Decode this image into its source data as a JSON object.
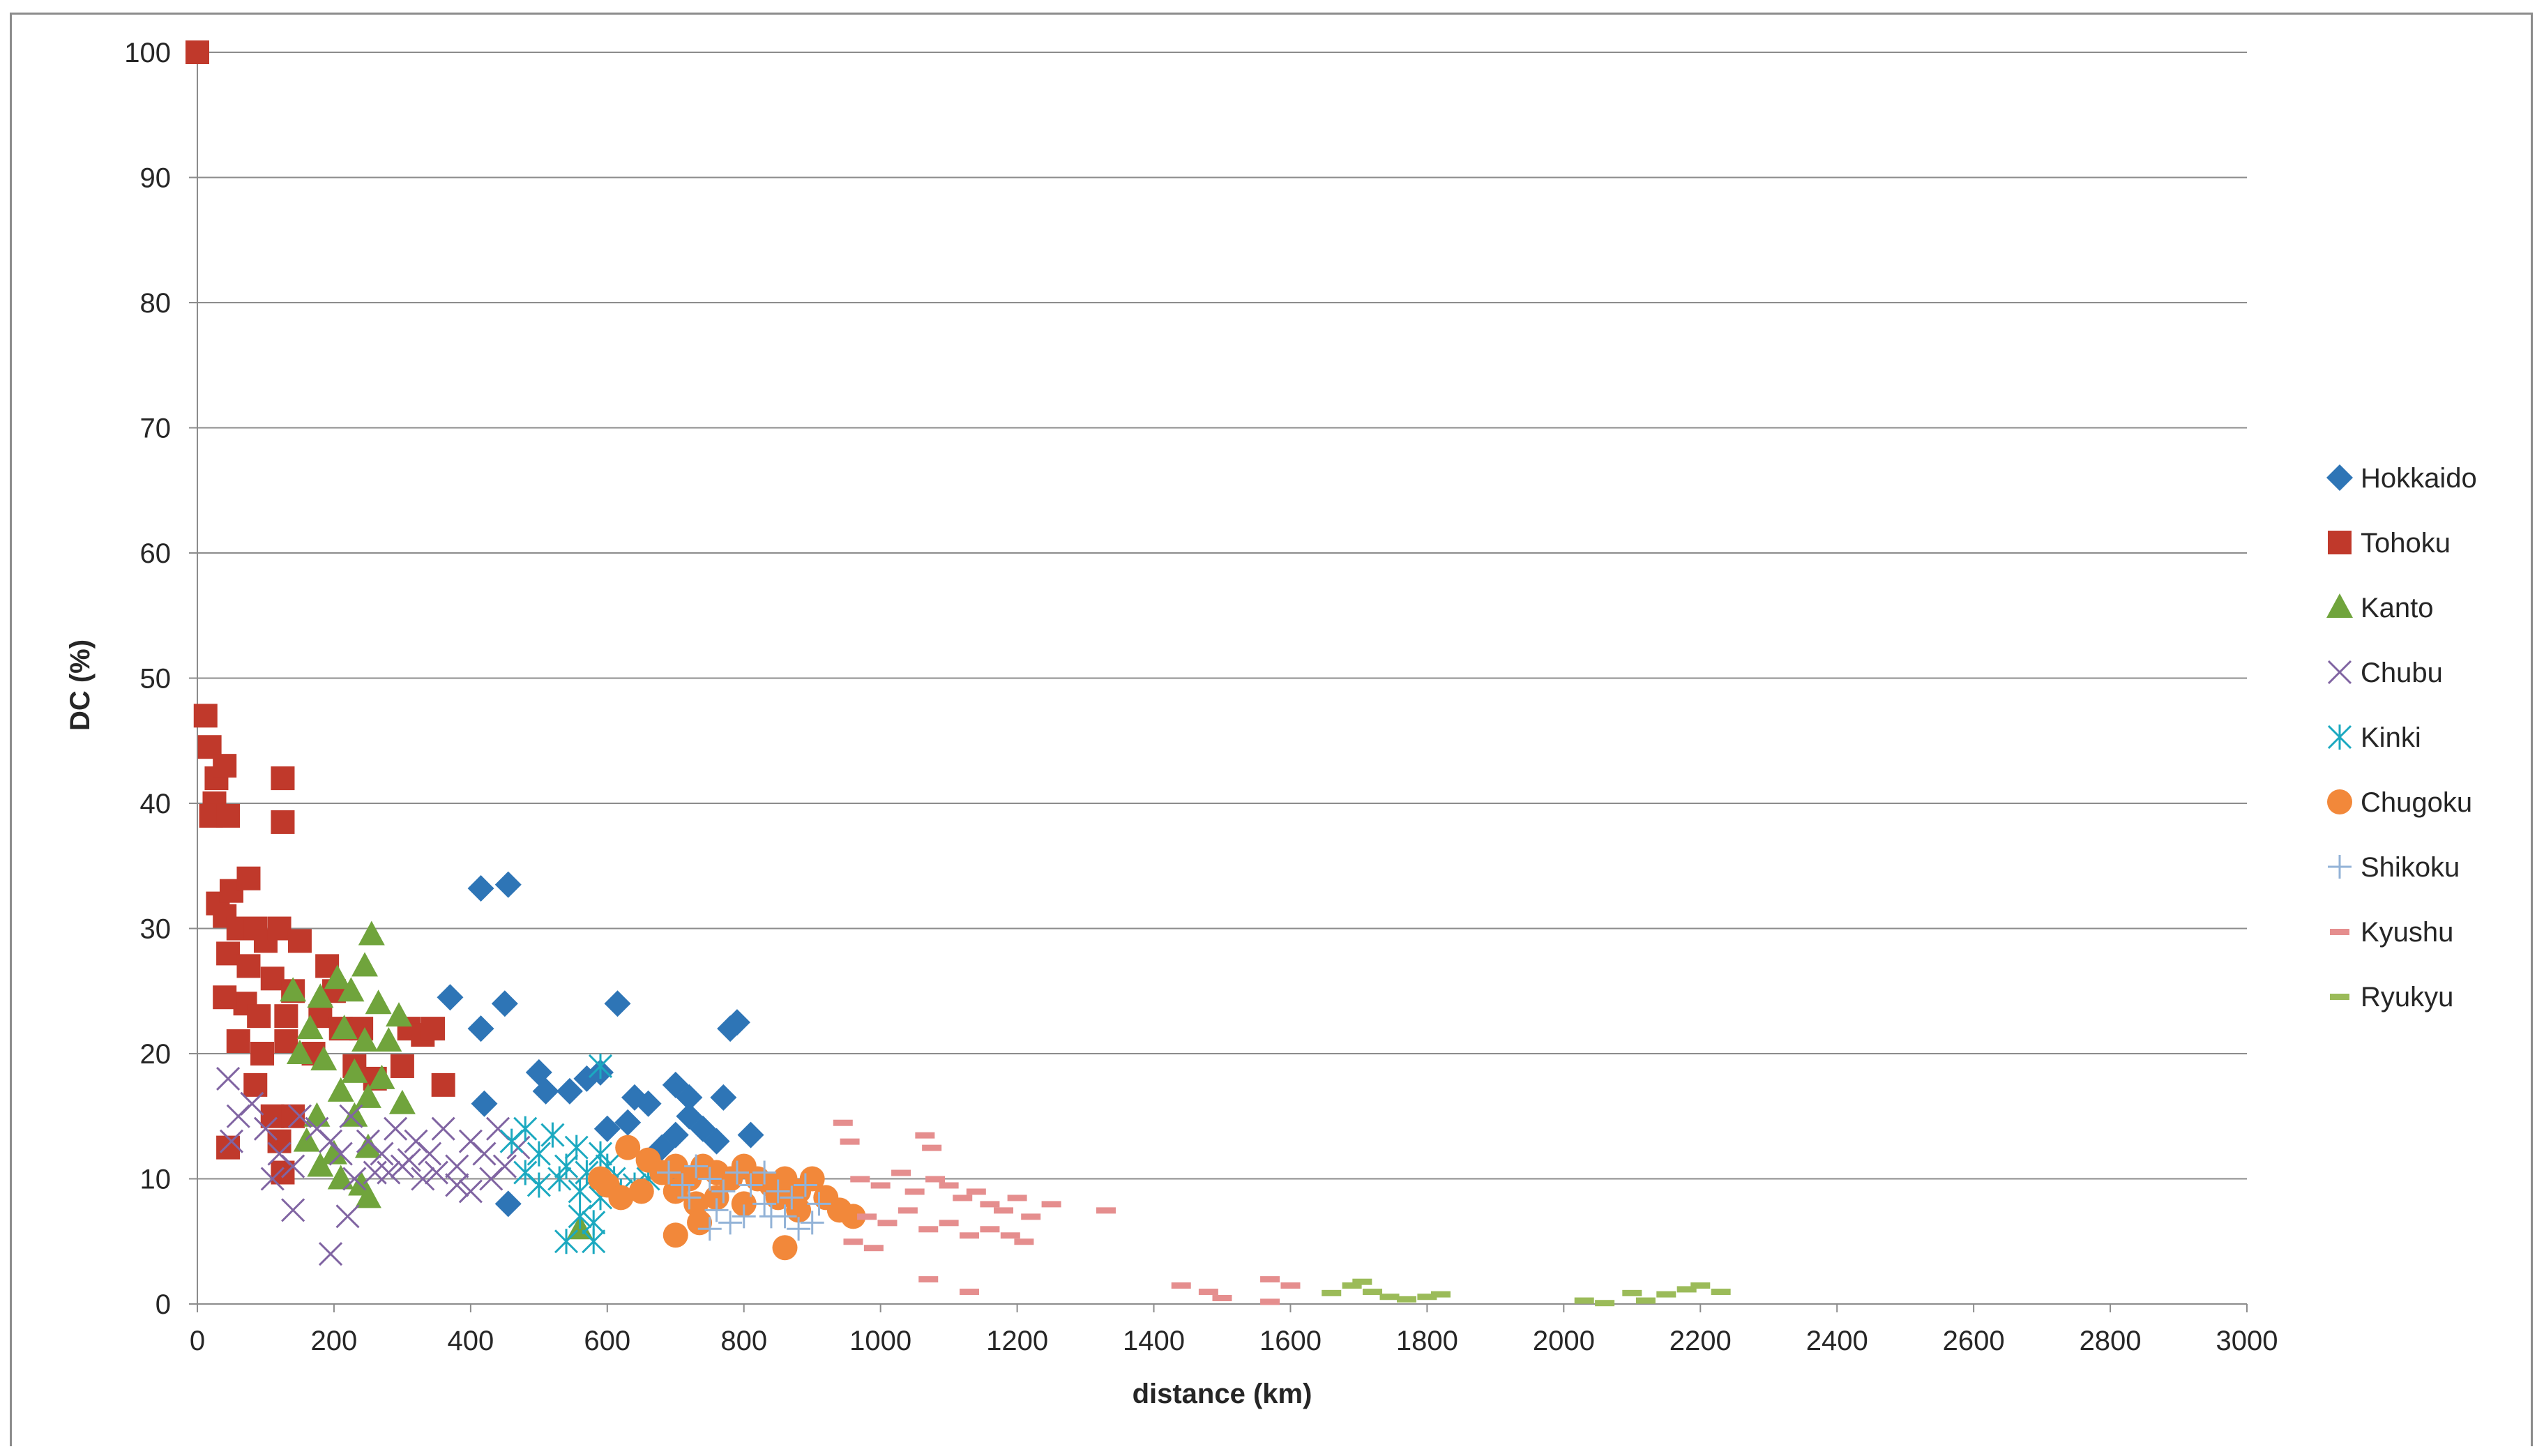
{
  "chart_data": {
    "type": "scatter",
    "title": "",
    "xlabel": "distance (km)",
    "ylabel": "DC (%)",
    "xlim": [
      0,
      3000
    ],
    "ylim": [
      0,
      100
    ],
    "x_ticks": [
      "0",
      "200",
      "400",
      "600",
      "800",
      "1000",
      "1200",
      "1400",
      "1600",
      "1800",
      "2000",
      "2200",
      "2400",
      "2600",
      "2800",
      "3000"
    ],
    "y_ticks": [
      "0",
      "10",
      "20",
      "30",
      "40",
      "50",
      "60",
      "70",
      "80",
      "90",
      "100"
    ],
    "grid": "horizontal",
    "legend_position": "right",
    "series": [
      {
        "name": "Hokkaido",
        "marker": "diamond",
        "color": "#2e75b6",
        "points": [
          [
            415,
            33.2
          ],
          [
            455,
            33.5
          ],
          [
            370,
            24.5
          ],
          [
            450,
            24
          ],
          [
            615,
            24
          ],
          [
            780,
            22
          ],
          [
            790,
            22.5
          ],
          [
            415,
            22
          ],
          [
            500,
            18.5
          ],
          [
            510,
            17
          ],
          [
            570,
            18
          ],
          [
            590,
            18.5
          ],
          [
            545,
            17
          ],
          [
            640,
            16.5
          ],
          [
            660,
            16
          ],
          [
            700,
            17.5
          ],
          [
            720,
            16.5
          ],
          [
            770,
            16.5
          ],
          [
            420,
            16
          ],
          [
            600,
            14
          ],
          [
            630,
            14.5
          ],
          [
            720,
            15
          ],
          [
            740,
            14
          ],
          [
            810,
            13.5
          ],
          [
            700,
            13.5
          ],
          [
            760,
            13
          ],
          [
            680,
            12.5
          ],
          [
            455,
            8
          ]
        ]
      },
      {
        "name": "Tohoku",
        "marker": "square",
        "color": "#c0392b",
        "points": [
          [
            0,
            100
          ],
          [
            12,
            47
          ],
          [
            18,
            44.5
          ],
          [
            28,
            42
          ],
          [
            40,
            43
          ],
          [
            25,
            40
          ],
          [
            20,
            39
          ],
          [
            45,
            39
          ],
          [
            125,
            42
          ],
          [
            125,
            38.5
          ],
          [
            30,
            32
          ],
          [
            50,
            33
          ],
          [
            75,
            34
          ],
          [
            40,
            31
          ],
          [
            60,
            30
          ],
          [
            85,
            30
          ],
          [
            100,
            29
          ],
          [
            120,
            30
          ],
          [
            150,
            29
          ],
          [
            190,
            27
          ],
          [
            45,
            28
          ],
          [
            75,
            27
          ],
          [
            110,
            26
          ],
          [
            140,
            25
          ],
          [
            200,
            25
          ],
          [
            70,
            24
          ],
          [
            40,
            24.5
          ],
          [
            90,
            23
          ],
          [
            130,
            23
          ],
          [
            180,
            23
          ],
          [
            210,
            22
          ],
          [
            240,
            22
          ],
          [
            310,
            22
          ],
          [
            330,
            21.5
          ],
          [
            345,
            22
          ],
          [
            60,
            21
          ],
          [
            95,
            20
          ],
          [
            130,
            21
          ],
          [
            170,
            20
          ],
          [
            230,
            19
          ],
          [
            260,
            18
          ],
          [
            300,
            19
          ],
          [
            360,
            17.5
          ],
          [
            85,
            17.5
          ],
          [
            110,
            15
          ],
          [
            140,
            15
          ],
          [
            120,
            13
          ],
          [
            45,
            12.5
          ],
          [
            125,
            10.5
          ]
        ]
      },
      {
        "name": "Kanto",
        "marker": "triangle",
        "color": "#70a43c",
        "points": [
          [
            255,
            29.5
          ],
          [
            245,
            27
          ],
          [
            140,
            25
          ],
          [
            180,
            24.5
          ],
          [
            205,
            26
          ],
          [
            225,
            25
          ],
          [
            265,
            24
          ],
          [
            295,
            23
          ],
          [
            165,
            22
          ],
          [
            215,
            22
          ],
          [
            245,
            21
          ],
          [
            280,
            21
          ],
          [
            150,
            20
          ],
          [
            185,
            19.5
          ],
          [
            230,
            18.5
          ],
          [
            270,
            18
          ],
          [
            210,
            17
          ],
          [
            250,
            16.5
          ],
          [
            300,
            16
          ],
          [
            175,
            15
          ],
          [
            230,
            15
          ],
          [
            160,
            13
          ],
          [
            200,
            12
          ],
          [
            250,
            12.5
          ],
          [
            180,
            11
          ],
          [
            210,
            10
          ],
          [
            240,
            9.5
          ],
          [
            250,
            8.5
          ],
          [
            560,
            6
          ]
        ]
      },
      {
        "name": "Chubu",
        "marker": "x",
        "color": "#8064a2",
        "points": [
          [
            45,
            18
          ],
          [
            60,
            15
          ],
          [
            80,
            16
          ],
          [
            100,
            14
          ],
          [
            120,
            12
          ],
          [
            50,
            13
          ],
          [
            140,
            11
          ],
          [
            150,
            15
          ],
          [
            175,
            14
          ],
          [
            195,
            13
          ],
          [
            210,
            12
          ],
          [
            225,
            15
          ],
          [
            250,
            13
          ],
          [
            270,
            12
          ],
          [
            290,
            14
          ],
          [
            300,
            11
          ],
          [
            320,
            13
          ],
          [
            340,
            12
          ],
          [
            360,
            14
          ],
          [
            380,
            11
          ],
          [
            400,
            13
          ],
          [
            420,
            12
          ],
          [
            440,
            14
          ],
          [
            450,
            11
          ],
          [
            470,
            12.5
          ],
          [
            230,
            10
          ],
          [
            280,
            10.5
          ],
          [
            330,
            10
          ],
          [
            380,
            9.5
          ],
          [
            430,
            10
          ],
          [
            110,
            10
          ],
          [
            140,
            7.5
          ],
          [
            195,
            4
          ],
          [
            260,
            10.5
          ],
          [
            310,
            11.5
          ],
          [
            350,
            10.5
          ],
          [
            400,
            9
          ],
          [
            220,
            7
          ]
        ]
      },
      {
        "name": "Kinki",
        "marker": "asterisk",
        "color": "#1ba9c0",
        "points": [
          [
            460,
            13
          ],
          [
            480,
            14
          ],
          [
            500,
            12
          ],
          [
            520,
            13.5
          ],
          [
            540,
            11
          ],
          [
            555,
            12.5
          ],
          [
            570,
            10.5
          ],
          [
            590,
            12
          ],
          [
            600,
            11
          ],
          [
            610,
            10
          ],
          [
            480,
            10.5
          ],
          [
            500,
            9.5
          ],
          [
            530,
            10
          ],
          [
            560,
            9
          ],
          [
            590,
            8.5
          ],
          [
            620,
            9
          ],
          [
            640,
            9.5
          ],
          [
            560,
            7
          ],
          [
            580,
            6.5
          ],
          [
            540,
            5
          ],
          [
            580,
            5
          ],
          [
            590,
            19
          ],
          [
            660,
            10
          ]
        ]
      },
      {
        "name": "Chugoku",
        "marker": "circle",
        "color": "#f2883a",
        "points": [
          [
            630,
            12.5
          ],
          [
            660,
            11.5
          ],
          [
            680,
            10.5
          ],
          [
            700,
            11
          ],
          [
            720,
            10
          ],
          [
            740,
            11
          ],
          [
            760,
            10.5
          ],
          [
            780,
            10
          ],
          [
            800,
            11
          ],
          [
            820,
            10
          ],
          [
            840,
            9.5
          ],
          [
            860,
            10
          ],
          [
            880,
            9
          ],
          [
            900,
            10
          ],
          [
            920,
            8.5
          ],
          [
            940,
            7.5
          ],
          [
            960,
            7
          ],
          [
            600,
            9.5
          ],
          [
            620,
            8.5
          ],
          [
            650,
            9
          ],
          [
            700,
            9
          ],
          [
            730,
            8
          ],
          [
            760,
            8.5
          ],
          [
            800,
            8
          ],
          [
            850,
            8.5
          ],
          [
            880,
            7.5
          ],
          [
            700,
            5.5
          ],
          [
            735,
            6.5
          ],
          [
            860,
            4.5
          ],
          [
            590,
            10
          ]
        ]
      },
      {
        "name": "Shikoku",
        "marker": "plus",
        "color": "#93b3d7",
        "points": [
          [
            690,
            10.5
          ],
          [
            710,
            9.5
          ],
          [
            730,
            11
          ],
          [
            750,
            10
          ],
          [
            770,
            9
          ],
          [
            790,
            10.5
          ],
          [
            810,
            9.5
          ],
          [
            830,
            10.5
          ],
          [
            850,
            9
          ],
          [
            870,
            8.5
          ],
          [
            890,
            9.5
          ],
          [
            910,
            8
          ],
          [
            720,
            8.5
          ],
          [
            760,
            7.5
          ],
          [
            800,
            7
          ],
          [
            830,
            8
          ],
          [
            860,
            7
          ],
          [
            880,
            6
          ],
          [
            900,
            6.5
          ],
          [
            750,
            6
          ],
          [
            780,
            6.5
          ],
          [
            840,
            7
          ]
        ]
      },
      {
        "name": "Kyushu",
        "marker": "dash",
        "color": "#e58e8e",
        "points": [
          [
            945,
            14.5
          ],
          [
            955,
            13
          ],
          [
            1065,
            13.5
          ],
          [
            1075,
            12.5
          ],
          [
            970,
            10
          ],
          [
            1000,
            9.5
          ],
          [
            1030,
            10.5
          ],
          [
            1050,
            9
          ],
          [
            1080,
            10
          ],
          [
            1100,
            9.5
          ],
          [
            1120,
            8.5
          ],
          [
            1140,
            9
          ],
          [
            1160,
            8
          ],
          [
            1180,
            7.5
          ],
          [
            1200,
            8.5
          ],
          [
            1220,
            7
          ],
          [
            1250,
            8
          ],
          [
            1330,
            7.5
          ],
          [
            980,
            7
          ],
          [
            1010,
            6.5
          ],
          [
            1040,
            7.5
          ],
          [
            1070,
            6
          ],
          [
            1100,
            6.5
          ],
          [
            1130,
            5.5
          ],
          [
            1160,
            6
          ],
          [
            1190,
            5.5
          ],
          [
            1210,
            5
          ],
          [
            960,
            5
          ],
          [
            990,
            4.5
          ],
          [
            1070,
            2
          ],
          [
            1130,
            1
          ],
          [
            1440,
            1.5
          ],
          [
            1480,
            1
          ],
          [
            1500,
            0.5
          ],
          [
            1570,
            2
          ],
          [
            1600,
            1.5
          ],
          [
            1570,
            0.2
          ]
        ]
      },
      {
        "name": "Ryukyu",
        "marker": "dash",
        "color": "#9bbb59",
        "points": [
          [
            1690,
            1.5
          ],
          [
            1705,
            1.8
          ],
          [
            1720,
            1
          ],
          [
            1745,
            0.6
          ],
          [
            1770,
            0.4
          ],
          [
            1800,
            0.6
          ],
          [
            1820,
            0.8
          ],
          [
            1660,
            0.9
          ],
          [
            2030,
            0.3
          ],
          [
            2060,
            0.1
          ],
          [
            2100,
            0.9
          ],
          [
            2120,
            0.3
          ],
          [
            2150,
            0.8
          ],
          [
            2180,
            1.2
          ],
          [
            2200,
            1.5
          ],
          [
            2230,
            1
          ]
        ]
      }
    ]
  }
}
